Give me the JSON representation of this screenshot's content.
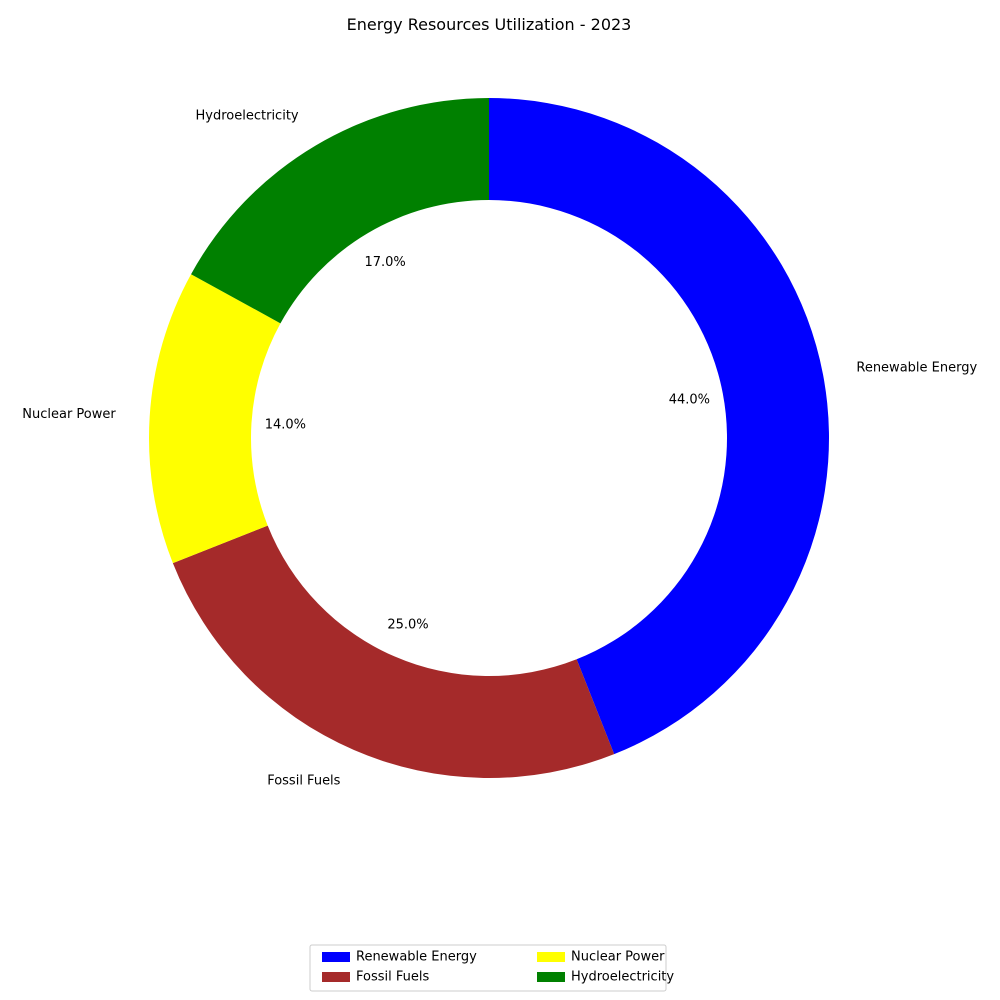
{
  "chart_data": {
    "type": "pie",
    "variant": "donut",
    "title": "Energy Resources Utilization - 2023",
    "categories": [
      "Renewable Energy",
      "Fossil Fuels",
      "Nuclear Power",
      "Hydroelectricity"
    ],
    "values": [
      44.0,
      25.0,
      14.0,
      17.0
    ],
    "value_labels": [
      "44.0%",
      "25.0%",
      "14.0%",
      "17.0%"
    ],
    "colors": [
      "#0000ff",
      "#a52a2a",
      "#ffff00",
      "#008000"
    ],
    "start_angle_deg": 90,
    "direction": "clockwise",
    "legend": {
      "placement": "bottom-center",
      "columns": 2,
      "entries": [
        "Renewable Energy",
        "Fossil Fuels",
        "Nuclear Power",
        "Hydroelectricity"
      ]
    }
  }
}
